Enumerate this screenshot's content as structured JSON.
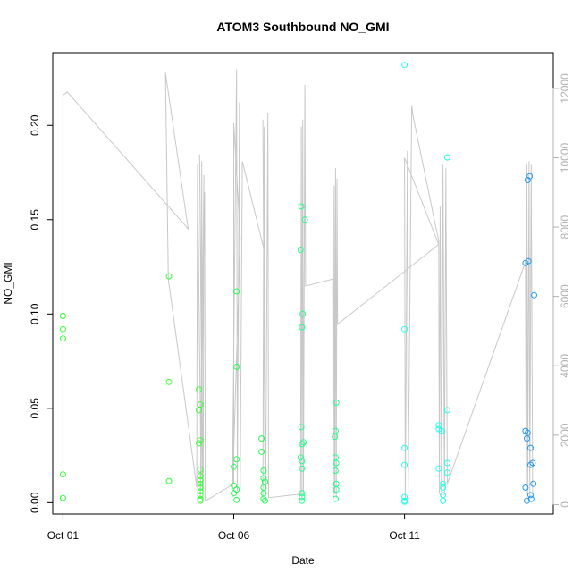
{
  "chart_data": {
    "type": "scatter",
    "title": "ATOM3 Southbound NO_GMI",
    "xlabel": "Date",
    "ylabel": "NO_GMI",
    "x_unit": "days",
    "xlim": [
      "2016-09-30T16:50",
      "2016-10-15T08:30"
    ],
    "ylim": [
      -0.006,
      0.2385
    ],
    "x_ticks": [
      {
        "date": "2016-10-01",
        "label": "Oct 01"
      },
      {
        "date": "2016-10-06",
        "label": "Oct 06"
      },
      {
        "date": "2016-10-11",
        "label": "Oct 11"
      }
    ],
    "y_ticks": [
      0.0,
      0.05,
      0.1,
      0.15,
      0.2
    ],
    "y_tick_labels": [
      "0.00",
      "0.05",
      "0.10",
      "0.15",
      "0.20"
    ],
    "y2lim": [
      -272,
      13028
    ],
    "y2_ticks": [
      0,
      2000,
      4000,
      6000,
      8000,
      10000,
      12000
    ],
    "y2_tick_labels": [
      "0",
      "2000",
      "4000",
      "6000",
      "8000",
      "10000",
      "12000"
    ],
    "series": [
      {
        "type": "scatter",
        "style": "open-circle",
        "color": "#33ff33",
        "points": [
          [
            "2016-10-01T00:00",
            0.099
          ],
          [
            "2016-10-01T00:00",
            0.092
          ],
          [
            "2016-10-01T00:00",
            0.087
          ],
          [
            "2016-10-01T00:00",
            0.015
          ],
          [
            "2016-10-01T00:00",
            0.0025
          ],
          [
            "2016-10-04T02:30",
            0.12
          ],
          [
            "2016-10-04T02:30",
            0.064
          ],
          [
            "2016-10-04T02:30",
            0.0115
          ],
          [
            "2016-10-04T23:30",
            0.06
          ],
          [
            "2016-10-04T23:30",
            0.049
          ],
          [
            "2016-10-04T23:30",
            0.0315
          ],
          [
            "2016-10-05T00:30",
            0.052
          ],
          [
            "2016-10-05T00:30",
            0.033
          ],
          [
            "2016-10-05T00:30",
            0.0175
          ],
          [
            "2016-10-05T00:30",
            0.014
          ],
          [
            "2016-10-05T00:30",
            0.012
          ],
          [
            "2016-10-05T00:30",
            0.01
          ],
          [
            "2016-10-05T00:30",
            0.008
          ],
          [
            "2016-10-05T00:30",
            0.006
          ],
          [
            "2016-10-05T00:30",
            0.004
          ],
          [
            "2016-10-05T00:30",
            0.002
          ],
          [
            "2016-10-05T00:30",
            0.001
          ]
        ]
      },
      {
        "type": "scatter",
        "style": "open-circle",
        "color": "#22ff55",
        "points": [
          [
            "2016-10-06T02:00",
            0.112
          ],
          [
            "2016-10-06T02:00",
            0.072
          ],
          [
            "2016-10-06T02:00",
            0.023
          ],
          [
            "2016-10-06T00:00",
            0.019
          ],
          [
            "2016-10-06T00:00",
            0.009
          ],
          [
            "2016-10-06T02:00",
            0.007
          ],
          [
            "2016-10-06T00:00",
            0.005
          ],
          [
            "2016-10-06T02:00",
            0.0015
          ],
          [
            "2016-10-06T19:30",
            0.034
          ],
          [
            "2016-10-06T19:30",
            0.027
          ],
          [
            "2016-10-06T21:00",
            0.017
          ],
          [
            "2016-10-06T21:00",
            0.013
          ],
          [
            "2016-10-06T22:00",
            0.011
          ],
          [
            "2016-10-06T21:00",
            0.008
          ],
          [
            "2016-10-06T21:00",
            0.005
          ],
          [
            "2016-10-06T21:00",
            0.002
          ],
          [
            "2016-10-06T22:00",
            0.001
          ]
        ]
      },
      {
        "type": "scatter",
        "style": "open-circle",
        "color": "#22ff88",
        "points": [
          [
            "2016-10-07T23:30",
            0.157
          ],
          [
            "2016-10-08T02:00",
            0.15
          ],
          [
            "2016-10-07T23:00",
            0.134
          ],
          [
            "2016-10-08T00:30",
            0.1
          ],
          [
            "2016-10-08T00:00",
            0.093
          ],
          [
            "2016-10-07T23:30",
            0.04
          ],
          [
            "2016-10-08T01:00",
            0.032
          ],
          [
            "2016-10-08T00:00",
            0.031
          ],
          [
            "2016-10-07T23:00",
            0.024
          ],
          [
            "2016-10-08T00:00",
            0.022
          ],
          [
            "2016-10-08T00:00",
            0.018
          ],
          [
            "2016-10-08T00:00",
            0.005
          ],
          [
            "2016-10-08T00:00",
            0.003
          ],
          [
            "2016-10-08T00:00",
            0.001
          ],
          [
            "2016-10-09T00:00",
            0.053
          ],
          [
            "2016-10-08T23:30",
            0.038
          ],
          [
            "2016-10-08T23:00",
            0.035
          ],
          [
            "2016-10-08T23:30",
            0.024
          ],
          [
            "2016-10-09T00:00",
            0.021
          ],
          [
            "2016-10-08T23:30",
            0.017
          ],
          [
            "2016-10-09T00:00",
            0.01
          ],
          [
            "2016-10-09T00:00",
            0.007
          ],
          [
            "2016-10-08T23:30",
            0.002
          ]
        ]
      },
      {
        "type": "scatter",
        "style": "open-circle",
        "color": "#22ffee",
        "points": [
          [
            "2016-10-11T00:00",
            0.232
          ],
          [
            "2016-10-11T00:00",
            0.092
          ],
          [
            "2016-10-11T00:00",
            0.029
          ],
          [
            "2016-10-11T00:00",
            0.02
          ],
          [
            "2016-10-11T00:00",
            0.003
          ],
          [
            "2016-10-11T00:00",
            0.001
          ],
          [
            "2016-10-11T00:00",
            0.0005
          ],
          [
            "2016-10-12T06:00",
            0.183
          ],
          [
            "2016-10-12T06:00",
            0.049
          ],
          [
            "2016-10-12T00:00",
            0.041
          ],
          [
            "2016-10-12T00:00",
            0.039
          ],
          [
            "2016-10-12T02:00",
            0.038
          ],
          [
            "2016-10-12T06:00",
            0.021
          ],
          [
            "2016-10-12T00:00",
            0.018
          ],
          [
            "2016-10-12T06:00",
            0.016
          ],
          [
            "2016-10-12T03:00",
            0.01
          ],
          [
            "2016-10-12T03:00",
            0.008
          ],
          [
            "2016-10-12T03:00",
            0.004
          ],
          [
            "2016-10-12T03:00",
            0.001
          ]
        ]
      },
      {
        "type": "scatter",
        "style": "open-circle",
        "color": "#2299ee",
        "points": [
          [
            "2016-10-14T16:00",
            0.173
          ],
          [
            "2016-10-14T14:30",
            0.171
          ],
          [
            "2016-10-14T15:00",
            0.128
          ],
          [
            "2016-10-14T13:00",
            0.127
          ],
          [
            "2016-10-14T19:00",
            0.11
          ],
          [
            "2016-10-14T13:00",
            0.038
          ],
          [
            "2016-10-14T14:30",
            0.037
          ],
          [
            "2016-10-14T14:00",
            0.034
          ],
          [
            "2016-10-14T16:30",
            0.029
          ],
          [
            "2016-10-14T18:00",
            0.021
          ],
          [
            "2016-10-14T16:30",
            0.02
          ],
          [
            "2016-10-14T18:30",
            0.01
          ],
          [
            "2016-10-14T13:00",
            0.008
          ],
          [
            "2016-10-14T16:30",
            0.004
          ],
          [
            "2016-10-14T17:00",
            0.002
          ],
          [
            "2016-10-14T14:00",
            0.001
          ]
        ]
      }
    ],
    "altitude_line": {
      "axis": "right",
      "color": "#c8c8c8",
      "path": [
        [
          "2016-10-01T00:00",
          1100
        ],
        [
          "2016-10-01T00:00",
          11800
        ],
        [
          "2016-10-01T03:00",
          11900
        ],
        [
          "2016-10-04T16:00",
          7950
        ],
        [
          "2016-10-04T00:00",
          12450
        ],
        [
          "2016-10-04T02:00",
          6500
        ],
        [
          "2016-10-04T22:00",
          500
        ],
        [
          "2016-10-04T22:30",
          9800
        ],
        [
          "2016-10-05T01:00",
          800
        ],
        [
          "2016-10-05T01:30",
          9900
        ],
        [
          "2016-10-05T02:00",
          400
        ],
        [
          "2016-10-05T00:00",
          10100
        ],
        [
          "2016-10-05T02:30",
          300
        ],
        [
          "2016-10-05T03:00",
          9500
        ],
        [
          "2016-10-05T00:30",
          200
        ],
        [
          "2016-10-05T03:30",
          9000
        ],
        [
          "2016-10-05T04:00",
          100
        ],
        [
          "2016-10-06T00:00",
          600
        ],
        [
          "2016-10-06T00:00",
          11000
        ],
        [
          "2016-10-06T04:30",
          7700
        ],
        [
          "2016-10-05T23:00",
          200
        ],
        [
          "2016-10-06T02:00",
          12550
        ],
        [
          "2016-10-06T02:30",
          400
        ],
        [
          "2016-10-06T04:00",
          11600
        ],
        [
          "2016-10-06T04:30",
          300
        ],
        [
          "2016-10-06T06:00",
          9900
        ],
        [
          "2016-10-06T21:00",
          7400
        ],
        [
          "2016-10-06T20:30",
          200
        ],
        [
          "2016-10-06T21:30",
          10900
        ],
        [
          "2016-10-06T22:00",
          400
        ],
        [
          "2016-10-06T20:30",
          11100
        ],
        [
          "2016-10-06T22:30",
          300
        ],
        [
          "2016-10-07T00:00",
          11300
        ],
        [
          "2016-10-07T00:30",
          200
        ],
        [
          "2016-10-07T23:00",
          300
        ],
        [
          "2016-10-07T23:30",
          10900
        ],
        [
          "2016-10-08T00:00",
          200
        ],
        [
          "2016-10-08T00:30",
          11100
        ],
        [
          "2016-10-08T01:00",
          300
        ],
        [
          "2016-10-08T02:00",
          12100
        ],
        [
          "2016-10-08T02:30",
          6300
        ],
        [
          "2016-10-08T21:30",
          6500
        ],
        [
          "2016-10-08T22:00",
          200
        ],
        [
          "2016-10-08T22:30",
          9200
        ],
        [
          "2016-10-08T23:00",
          300
        ],
        [
          "2016-10-08T23:30",
          9700
        ],
        [
          "2016-10-09T00:00",
          200
        ],
        [
          "2016-10-09T00:30",
          9400
        ],
        [
          "2016-10-09T01:00",
          5200
        ],
        [
          "2016-10-12T00:00",
          7500
        ],
        [
          "2016-10-11T00:00",
          10000
        ],
        [
          "2016-10-11T00:30",
          200
        ],
        [
          "2016-10-11T02:00",
          10200
        ],
        [
          "2016-10-11T02:30",
          300
        ],
        [
          "2016-10-11T05:00",
          11500
        ],
        [
          "2016-10-11T06:00",
          11200
        ],
        [
          "2016-10-12T00:00",
          7600
        ],
        [
          "2016-10-12T00:30",
          300
        ],
        [
          "2016-10-12T01:00",
          8600
        ],
        [
          "2016-10-12T02:00",
          200
        ],
        [
          "2016-10-12T03:00",
          9800
        ],
        [
          "2016-10-12T04:00",
          300
        ],
        [
          "2016-10-12T05:00",
          9700
        ],
        [
          "2016-10-12T06:00",
          600
        ],
        [
          "2016-10-14T13:00",
          7000
        ],
        [
          "2016-10-14T13:30",
          200
        ],
        [
          "2016-10-14T14:00",
          9800
        ],
        [
          "2016-10-14T14:30",
          300
        ],
        [
          "2016-10-14T15:30",
          9900
        ],
        [
          "2016-10-14T16:00",
          200
        ],
        [
          "2016-10-14T17:00",
          9800
        ],
        [
          "2016-10-14T18:00",
          300
        ]
      ]
    }
  }
}
